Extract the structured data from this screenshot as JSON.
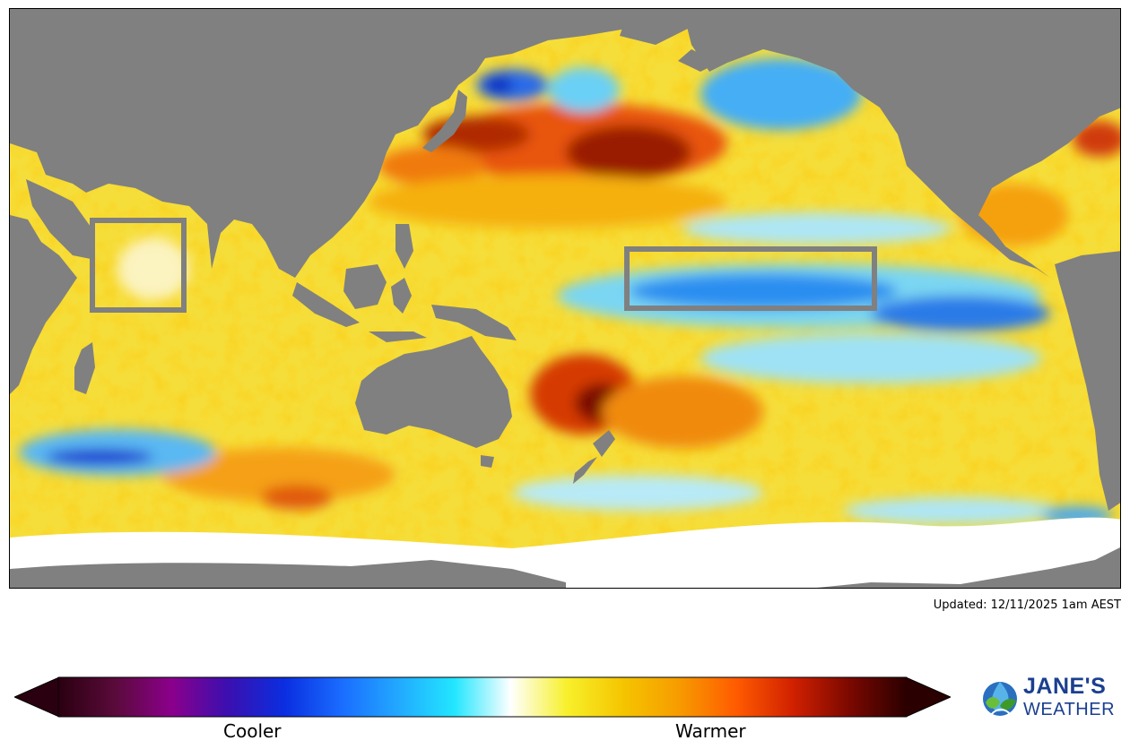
{
  "updated_text": "Updated: 12/11/2025 1am AEST",
  "legend": {
    "low_label": "Cooler",
    "high_label": "Warmer",
    "colors": [
      "#2a0010",
      "#5a0a3a",
      "#8b008b",
      "#3b0fb0",
      "#0a2ee0",
      "#1a6cff",
      "#22a8ff",
      "#22e6ff",
      "#ffffff",
      "#f7f02a",
      "#f5c400",
      "#f79a00",
      "#ff5a00",
      "#d02000",
      "#7a0800",
      "#2a0000"
    ]
  },
  "map": {
    "land_color": "#808080",
    "no_data_color": "#ffffff",
    "highlight_box_color": "#808080"
  },
  "logo": {
    "line1": "JANE'S",
    "line2": "WEATHER"
  }
}
